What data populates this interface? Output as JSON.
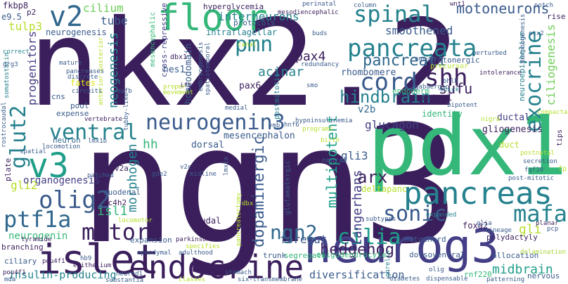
{
  "palette": {
    "dark_purple": "#3b1f5c",
    "indigo": "#433e85",
    "blue": "#3a5b8c",
    "steel": "#31688e",
    "teal": "#26828e",
    "sea": "#1f9e89",
    "green": "#35b779",
    "lime": "#6ece58",
    "yellow_green": "#b5de2b",
    "yellow": "#dde318",
    "pale": "#a9d43a"
  },
  "words": [
    {
      "id": "nkx2-2",
      "text": "nkx2.2",
      "color": "#3b1f5c"
    },
    {
      "id": "ngn3",
      "text": "ngn3",
      "color": "#3b1f5c"
    },
    {
      "id": "pdx1",
      "text": "pdx1",
      "color": "#35b779"
    },
    {
      "id": "neurog3",
      "text": "neurog3",
      "color": "#433e85"
    },
    {
      "id": "endocrine",
      "text": "endocrine",
      "color": "#3b1f5c"
    },
    {
      "id": "islet",
      "text": "islet",
      "color": "#3b1f5c"
    },
    {
      "id": "pancreas",
      "text": "pancreas",
      "color": "#26828e"
    },
    {
      "id": "pancreata",
      "text": "pancreata",
      "color": "#26828e"
    },
    {
      "id": "floor",
      "text": "floor",
      "color": "#35b779"
    },
    {
      "id": "spinal",
      "text": "spinal",
      "color": "#26828e"
    },
    {
      "id": "v2",
      "text": "v2",
      "color": "#31688e"
    },
    {
      "id": "v3",
      "text": "v3",
      "color": "#1f9e89"
    },
    {
      "id": "ventral",
      "text": "ventral",
      "color": "#26828e"
    },
    {
      "id": "neurogenin3",
      "text": "neurogenin3",
      "color": "#3a5b8c"
    },
    {
      "id": "cord",
      "text": "cord",
      "color": "#3a5b8c"
    },
    {
      "id": "pmn",
      "text": "pmn",
      "color": "#26828e"
    },
    {
      "id": "exocrine",
      "text": "exocrine",
      "color": "#26828e"
    },
    {
      "id": "shh",
      "text": "shh",
      "color": "#3b1f5c"
    },
    {
      "id": "sonic",
      "text": "sonic",
      "color": "#3a5b8c"
    },
    {
      "id": "motor",
      "text": "motor",
      "color": "#3b1f5c"
    },
    {
      "id": "olig2",
      "text": "olig2",
      "color": "#3a5b8c"
    },
    {
      "id": "ptf1a",
      "text": "ptf1a",
      "color": "#31688e"
    },
    {
      "id": "cilia",
      "text": "cilia",
      "color": "#1f9e89"
    },
    {
      "id": "mafa",
      "text": "mafa",
      "color": "#26828e"
    },
    {
      "id": "ngn2",
      "text": "ngn2",
      "color": "#31688e"
    },
    {
      "id": "hedgehog",
      "text": "hedgehog",
      "color": "#3b1f5c"
    },
    {
      "id": "glut2",
      "text": "glut2",
      "color": "#26828e"
    },
    {
      "id": "pancreati",
      "text": "pancreati",
      "color": "#31688e"
    },
    {
      "id": "hindbrain",
      "text": "hindbrain",
      "color": "#26828e"
    },
    {
      "id": "dopaminergic",
      "text": "dopaminergic",
      "color": "#3a5b8c"
    },
    {
      "id": "multipotent",
      "text": "multipotent",
      "color": "#1f9e89"
    },
    {
      "id": "langerhans",
      "text": "langerhans",
      "color": "#433e85"
    },
    {
      "id": "arx",
      "text": "arx",
      "color": "#3b1f5c"
    },
    {
      "id": "pax4",
      "text": "pax4",
      "color": "#3b1f5c"
    },
    {
      "id": "acinar",
      "text": "acinar",
      "color": "#26828e"
    },
    {
      "id": "motoneurons",
      "text": "motoneurons",
      "color": "#3a5b8c"
    },
    {
      "id": "smoothened",
      "text": "smoothened",
      "color": "#3a5b8c"
    },
    {
      "id": "interneurons",
      "text": "interneurons",
      "color": "#26828e"
    },
    {
      "id": "cilium",
      "text": "cilium",
      "color": "#6ece58"
    },
    {
      "id": "tube",
      "text": "tube",
      "color": "#3a5b8c"
    },
    {
      "id": "tulp3",
      "text": "tulp3",
      "color": "#b5de2b"
    },
    {
      "id": "neogenesis",
      "text": "neogenesis",
      "color": "#26828e"
    },
    {
      "id": "progenitors",
      "text": "progenitors",
      "color": "#433e85"
    },
    {
      "id": "morphogen",
      "text": "morphogen",
      "color": "#26828e"
    },
    {
      "id": "isl1",
      "text": "isl1",
      "color": "#35b779"
    },
    {
      "id": "gli2",
      "text": "gli2",
      "color": "#b5de2b"
    },
    {
      "id": "glucagon",
      "text": "glucagon",
      "color": "#433e85"
    },
    {
      "id": "ciliogenesis",
      "text": "ciliogenesis",
      "color": "#6ece58"
    },
    {
      "id": "sufu",
      "text": "sufu",
      "color": "#3b1f5c"
    },
    {
      "id": "gli3",
      "text": "gli3",
      "color": "#3a5b8c"
    },
    {
      "id": "midbrain",
      "text": "midbrain",
      "color": "#1f9e89"
    },
    {
      "id": "gli",
      "text": "gli",
      "color": "#b5de2b"
    },
    {
      "id": "foregut",
      "text": "foregut",
      "color": "#3a5b8c"
    },
    {
      "id": "neurogenin",
      "text": "neurogenin",
      "color": "#35b779"
    },
    {
      "id": "insulin-producing",
      "text": "insulin-producing",
      "color": "#26828e"
    },
    {
      "id": "diversification",
      "text": "diversification",
      "color": "#3a5b8c"
    },
    {
      "id": "organogenesis",
      "text": "organogenesis",
      "color": "#433e85"
    },
    {
      "id": "hh",
      "text": "hh",
      "color": "#35b779"
    },
    {
      "id": "gliogenesis",
      "text": "gliogenesis",
      "color": "#3b1f5c"
    },
    {
      "id": "ductal",
      "text": "ductal",
      "color": "#433e85"
    },
    {
      "id": "rhombomere",
      "text": "rhombomere",
      "color": "#3a5b8c"
    },
    {
      "id": "pax6",
      "text": "pax6",
      "color": "#3b1f5c"
    },
    {
      "id": "hes1",
      "text": "hes1",
      "color": "#3a5b8c"
    },
    {
      "id": "homeodomain",
      "text": "homeodomain",
      "color": "#3a5b8c"
    },
    {
      "id": "mesencephalon",
      "text": "mesencephalon",
      "color": "#3a5b8c"
    },
    {
      "id": "dorsal",
      "text": "dorsal",
      "color": "#3a5b8c"
    },
    {
      "id": "v2b",
      "text": "v2b",
      "color": "#31688e"
    },
    {
      "id": "neurogenesis",
      "text": "neurogenesis",
      "color": "#3a5b8c"
    },
    {
      "id": "fkbp8",
      "text": "fkbp8",
      "color": "#3b1f5c"
    },
    {
      "id": "e9-5",
      "text": "e9.5",
      "color": "#3a5b8c"
    },
    {
      "id": "hyperglycemia",
      "text": "hyperglycemia",
      "color": "#3b1f5c"
    },
    {
      "id": "intraflagellar",
      "text": "intraflagellar",
      "color": "#26828e"
    },
    {
      "id": "protocols",
      "text": "protocols",
      "color": "#3a5b8c"
    },
    {
      "id": "cross-repressive",
      "text": "cross-repressive",
      "color": "#433e85"
    },
    {
      "id": "mesencephalic",
      "text": "mesencephalic",
      "color": "#35b779"
    },
    {
      "id": "serotonergic",
      "text": "serotonergic",
      "color": "#3a5b8c"
    },
    {
      "id": "endoderm",
      "text": "endoderm",
      "color": "#35b779"
    },
    {
      "id": "rostral",
      "text": "rostral",
      "color": "#3b1f5c"
    },
    {
      "id": "identity",
      "text": "identity",
      "color": "#35b779"
    },
    {
      "id": "neuroepithelium",
      "text": "neuroepithelium",
      "color": "#26828e"
    },
    {
      "id": "fates",
      "text": "fates",
      "color": "#dde318"
    },
    {
      "id": "cns",
      "text": "cns",
      "color": "#3a5b8c"
    },
    {
      "id": "pool",
      "text": "pool",
      "color": "#3a5b8c"
    },
    {
      "id": "expense",
      "text": "expense",
      "color": "#3a5b8c"
    },
    {
      "id": "neuron",
      "text": "neuron",
      "color": "#31688e"
    },
    {
      "id": "plate",
      "text": "plate",
      "color": "#3b1f5c"
    },
    {
      "id": "v2a",
      "text": "v2a",
      "color": "#3b1f5c"
    },
    {
      "id": "zc4h2",
      "text": "zc4h2",
      "color": "#3b1f5c"
    },
    {
      "id": "duodenal",
      "text": "duodenal",
      "color": "#3a5b8c"
    },
    {
      "id": "caudal",
      "text": "caudal",
      "color": "#3b1f5c"
    },
    {
      "id": "deltapanc",
      "text": "deltapanc",
      "color": "#b5de2b"
    },
    {
      "id": "notochord",
      "text": "notochord",
      "color": "#3a5b8c"
    },
    {
      "id": "foxa2",
      "text": "foxa2",
      "color": "#3b1f5c"
    },
    {
      "id": "dorsoventral",
      "text": "dorsoventral",
      "color": "#3a5b8c"
    },
    {
      "id": "oligodendrocyte",
      "text": "oligodendrocyte",
      "color": "#35b779"
    },
    {
      "id": "branching",
      "text": "branching",
      "color": "#3b1f5c"
    },
    {
      "id": "ciliary",
      "text": "ciliary",
      "color": "#3a5b8c"
    },
    {
      "id": "expansion",
      "text": "expansion",
      "color": "#3a5b8c"
    },
    {
      "id": "segregate",
      "text": "segregate",
      "color": "#35b779"
    },
    {
      "id": "trunk",
      "text": "trunk",
      "color": "#3a5b8c"
    },
    {
      "id": "polydactyly",
      "text": "polydactyly",
      "color": "#3b1f5c"
    },
    {
      "id": "allocation",
      "text": "allocation",
      "color": "#3a5b8c"
    },
    {
      "id": "nervous",
      "text": "nervous",
      "color": "#3a5b8c"
    },
    {
      "id": "rnf220",
      "text": "rnf220",
      "color": "#35b779"
    },
    {
      "id": "duct",
      "text": "duct",
      "color": "#b5de2b"
    },
    {
      "id": "glutamatergic",
      "text": "glutamatergic",
      "color": "#3a5b8c"
    },
    {
      "id": "mesodiencephalic",
      "text": "mesodiencephalic",
      "color": "#3b1f5c"
    },
    {
      "id": "perinatal",
      "text": "perinatal",
      "color": "#3a5b8c"
    },
    {
      "id": "wnt1",
      "text": "wnt1",
      "color": "#3b1f5c"
    },
    {
      "id": "notch",
      "text": "notch",
      "color": "#3a5b8c"
    },
    {
      "id": "rise",
      "text": "rise",
      "color": "#3b1f5c"
    },
    {
      "id": "otx2",
      "text": "otx2",
      "color": "#3a5b8c"
    },
    {
      "id": "column",
      "text": "column",
      "color": "#3a5b8c"
    },
    {
      "id": "precursor",
      "text": "precursor",
      "color": "#b5de2b"
    },
    {
      "id": "ngn-3",
      "text": "ngn-3",
      "color": "#3a5b8c"
    },
    {
      "id": "gabaergic",
      "text": "gabaergic",
      "color": "#3a5b8c"
    },
    {
      "id": "bhlh",
      "text": "bhlh",
      "color": "#3a5b8c"
    },
    {
      "id": "chick",
      "text": "chick",
      "color": "#26828e"
    },
    {
      "id": "intolerance",
      "text": "intolerance",
      "color": "#3b1f5c"
    },
    {
      "id": "perturbed",
      "text": "perturbed",
      "color": "#3a5b8c"
    },
    {
      "id": "morphogenesis",
      "text": "morphogenesis",
      "color": "#3a5b8c"
    },
    {
      "id": "bipotent",
      "text": "bipotent",
      "color": "#3a5b8c"
    },
    {
      "id": "compacta",
      "text": "compacta",
      "color": "#b5de2b"
    },
    {
      "id": "postnatal",
      "text": "postnatal",
      "color": "#b5de2b"
    },
    {
      "id": "secretion",
      "text": "secretion",
      "color": "#3a5b8c"
    },
    {
      "id": "fgf10",
      "text": "fgf10",
      "color": "#3a5b8c"
    },
    {
      "id": "tips",
      "text": "tips",
      "color": "#3b1f5c"
    },
    {
      "id": "fp",
      "text": "fp",
      "color": "#b5de2b"
    },
    {
      "id": "post-mitotic",
      "text": "post-mitotic",
      "color": "#3a5b8c"
    },
    {
      "id": "delamination",
      "text": "delamination",
      "color": "#a9d43a"
    },
    {
      "id": "planar",
      "text": "planar",
      "color": "#3b1f5c"
    },
    {
      "id": "pcp",
      "text": "pcp",
      "color": "#3a5b8c"
    },
    {
      "id": "lineage",
      "text": "lineage",
      "color": "#3a5b8c"
    },
    {
      "id": "glia",
      "text": "glia",
      "color": "#3a5b8c"
    },
    {
      "id": "expanded",
      "text": "expanded",
      "color": "#26828e"
    },
    {
      "id": "olig",
      "text": "olig",
      "color": "#3a5b8c"
    },
    {
      "id": "ghrelin",
      "text": "ghrelin",
      "color": "#26828e"
    },
    {
      "id": "dispensable",
      "text": "dispensable",
      "color": "#3a5b8c"
    },
    {
      "id": "diabetes",
      "text": "diabetes",
      "color": "#3a5b8c"
    },
    {
      "id": "patterning",
      "text": "patterning",
      "color": "#3a5b8c"
    },
    {
      "id": "six-transmembrane",
      "text": "six-transmembrane",
      "color": "#3a5b8c"
    },
    {
      "id": "subtypes",
      "text": "subtypes",
      "color": "#3a5b8c"
    },
    {
      "id": "stomach",
      "text": "stomach",
      "color": "#3a5b8c"
    },
    {
      "id": "adulthood",
      "text": "adulthood",
      "color": "#3a5b8c"
    },
    {
      "id": "specifies",
      "text": "specifies",
      "color": "#b5de2b"
    },
    {
      "id": "parkinson",
      "text": "parkinson",
      "color": "#3b1f5c"
    },
    {
      "id": "pancreatectomy",
      "text": "pancreatectomy",
      "color": "#b5de2b"
    },
    {
      "id": "dbx",
      "text": "dbx",
      "color": "#b5de2b"
    },
    {
      "id": "ependymal",
      "text": "ependymal",
      "color": "#3a5b8c"
    },
    {
      "id": "neurod1",
      "text": "neurod1",
      "color": "#3a5b8c"
    },
    {
      "id": "substantia",
      "text": "substantia",
      "color": "#3a5b8c"
    },
    {
      "id": "classes",
      "text": "classes",
      "color": "#b5de2b"
    },
    {
      "id": "epithelium",
      "text": "epithelium",
      "color": "#3b1f5c"
    },
    {
      "id": "hb9",
      "text": "hb9",
      "color": "#3a5b8c"
    },
    {
      "id": "pou4f1",
      "text": "pou4f1",
      "color": "#3b1f5c"
    },
    {
      "id": "mda",
      "text": "mda",
      "color": "#3a5b8c"
    },
    {
      "id": "tyramide",
      "text": "tyramide",
      "color": "#3b1f5c"
    },
    {
      "id": "locomotor",
      "text": "locomotor",
      "color": "#b5de2b"
    },
    {
      "id": "v2c",
      "text": "v2c",
      "color": "#3a5b8c"
    },
    {
      "id": "v1",
      "text": "v1",
      "color": "#3b1f5c"
    },
    {
      "id": "midline",
      "text": "midline",
      "color": "#3a5b8c"
    },
    {
      "id": "gde2",
      "text": "gde2",
      "color": "#3a5b8c"
    },
    {
      "id": "patched",
      "text": "patched",
      "color": "#3a5b8c"
    },
    {
      "id": "lmx1a",
      "text": "lmx1a",
      "color": "#3a5b8c"
    },
    {
      "id": "neural",
      "text": "neural",
      "color": "#3a5b8c"
    },
    {
      "id": "spatial",
      "text": "spatial",
      "color": "#3a5b8c"
    },
    {
      "id": "locomotion",
      "text": "locomotion",
      "color": "#3a5b8c"
    },
    {
      "id": "lmx1b",
      "text": "lmx1b",
      "color": "#3a5b8c"
    },
    {
      "id": "rostrocaudal",
      "text": "rostrocaudal",
      "color": "#3a5b8c"
    },
    {
      "id": "birth",
      "text": "birth",
      "color": "#b5de2b"
    },
    {
      "id": "programs",
      "text": "programs",
      "color": "#b5de2b"
    },
    {
      "id": "hypoinsulinemia",
      "text": "hypoinsulinemia",
      "color": "#3a5b8c"
    },
    {
      "id": "nigra",
      "text": "nigra",
      "color": "#b5de2b"
    },
    {
      "id": "postmitotic",
      "text": "postmitotic",
      "color": "#26828e"
    },
    {
      "id": "vmb",
      "text": "vmb",
      "color": "#3a5b8c"
    },
    {
      "id": "hnf6",
      "text": "hnf6",
      "color": "#3a5b8c"
    },
    {
      "id": "medial",
      "text": "medial",
      "color": "#3a5b8c"
    },
    {
      "id": "spatiotemporal",
      "text": "spatiotemporal",
      "color": "#3a5b8c"
    },
    {
      "id": "embryogenesis",
      "text": "embryogenesis",
      "color": "#3a5b8c"
    },
    {
      "id": "ift",
      "text": "ift",
      "color": "#3b1f5c"
    },
    {
      "id": "dbx1",
      "text": "dbx1",
      "color": "#3b1f5c"
    },
    {
      "id": "canal",
      "text": "canal",
      "color": "#b5de2b"
    },
    {
      "id": "buds",
      "text": "buds",
      "color": "#3a5b8c"
    },
    {
      "id": "smo",
      "text": "smo",
      "color": "#3a5b8c"
    },
    {
      "id": "redundancy",
      "text": "redundancy",
      "color": "#3a5b8c"
    },
    {
      "id": "movement",
      "text": "movement",
      "color": "#b5de2b"
    },
    {
      "id": "proper",
      "text": "proper",
      "color": "#b5de2b"
    },
    {
      "id": "vertebrate",
      "text": "vertebrate",
      "color": "#3b1f5c"
    },
    {
      "id": "tubby-like",
      "text": "tubby-like",
      "color": "#3a5b8c"
    },
    {
      "id": "mafb",
      "text": "mafb",
      "color": "#3a5b8c"
    },
    {
      "id": "anterior-posterior",
      "text": "anterior-posterior",
      "color": "#b5de2b"
    },
    {
      "id": "circuits",
      "text": "circuits",
      "color": "#3a5b8c"
    },
    {
      "id": "mature",
      "text": "mature",
      "color": "#3a5b8c"
    },
    {
      "id": "pancreases",
      "text": "pancreases",
      "color": "#3a5b8c"
    },
    {
      "id": "discrete",
      "text": "discrete",
      "color": "#3a5b8c"
    },
    {
      "id": "somatostatin",
      "text": "somatostatin",
      "color": "#26828e"
    },
    {
      "id": "correct",
      "text": "correct",
      "color": "#26828e"
    },
    {
      "id": "grg3",
      "text": "grg3",
      "color": "#3a5b8c"
    },
    {
      "id": "p2",
      "text": "p2",
      "color": "#3b1f5c"
    },
    {
      "id": "pou4f1b",
      "text": "pou4f1",
      "color": "#3b1f5c"
    }
  ]
}
